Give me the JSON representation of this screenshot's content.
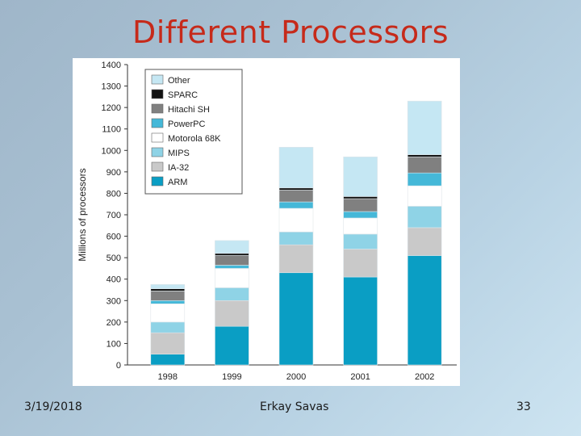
{
  "slide": {
    "title": "Different Processors",
    "footer_date": "3/19/2018",
    "footer_author": "Erkay Savas",
    "footer_page": "33"
  },
  "chart_data": {
    "type": "bar",
    "stacked": true,
    "categories": [
      "1998",
      "1999",
      "2000",
      "2001",
      "2002"
    ],
    "ylabel": "Millions of processors",
    "xlabel": "",
    "ylim": [
      0,
      1400
    ],
    "yticks": [
      0,
      100,
      200,
      300,
      400,
      500,
      600,
      700,
      800,
      900,
      1000,
      1100,
      1200,
      1300,
      1400
    ],
    "legend_position": "top-left",
    "series": [
      {
        "name": "ARM",
        "color": "#0a9ec4",
        "values": [
          50,
          180,
          430,
          410,
          510
        ]
      },
      {
        "name": "IA-32",
        "color": "#c9c9c9",
        "values": [
          100,
          120,
          130,
          130,
          130
        ]
      },
      {
        "name": "MIPS",
        "color": "#8fd3e6",
        "values": [
          50,
          60,
          60,
          70,
          100
        ]
      },
      {
        "name": "Motorola 68K",
        "color": "#ffffff",
        "values": [
          85,
          90,
          110,
          75,
          95
        ]
      },
      {
        "name": "PowerPC",
        "color": "#45b8d8",
        "values": [
          15,
          15,
          30,
          30,
          60
        ]
      },
      {
        "name": "Hitachi SH",
        "color": "#808080",
        "values": [
          45,
          45,
          55,
          60,
          75
        ]
      },
      {
        "name": "SPARC",
        "color": "#111111",
        "values": [
          10,
          10,
          10,
          10,
          10
        ]
      },
      {
        "name": "Other",
        "color": "#c5e7f3",
        "values": [
          20,
          60,
          190,
          185,
          250
        ]
      }
    ]
  }
}
